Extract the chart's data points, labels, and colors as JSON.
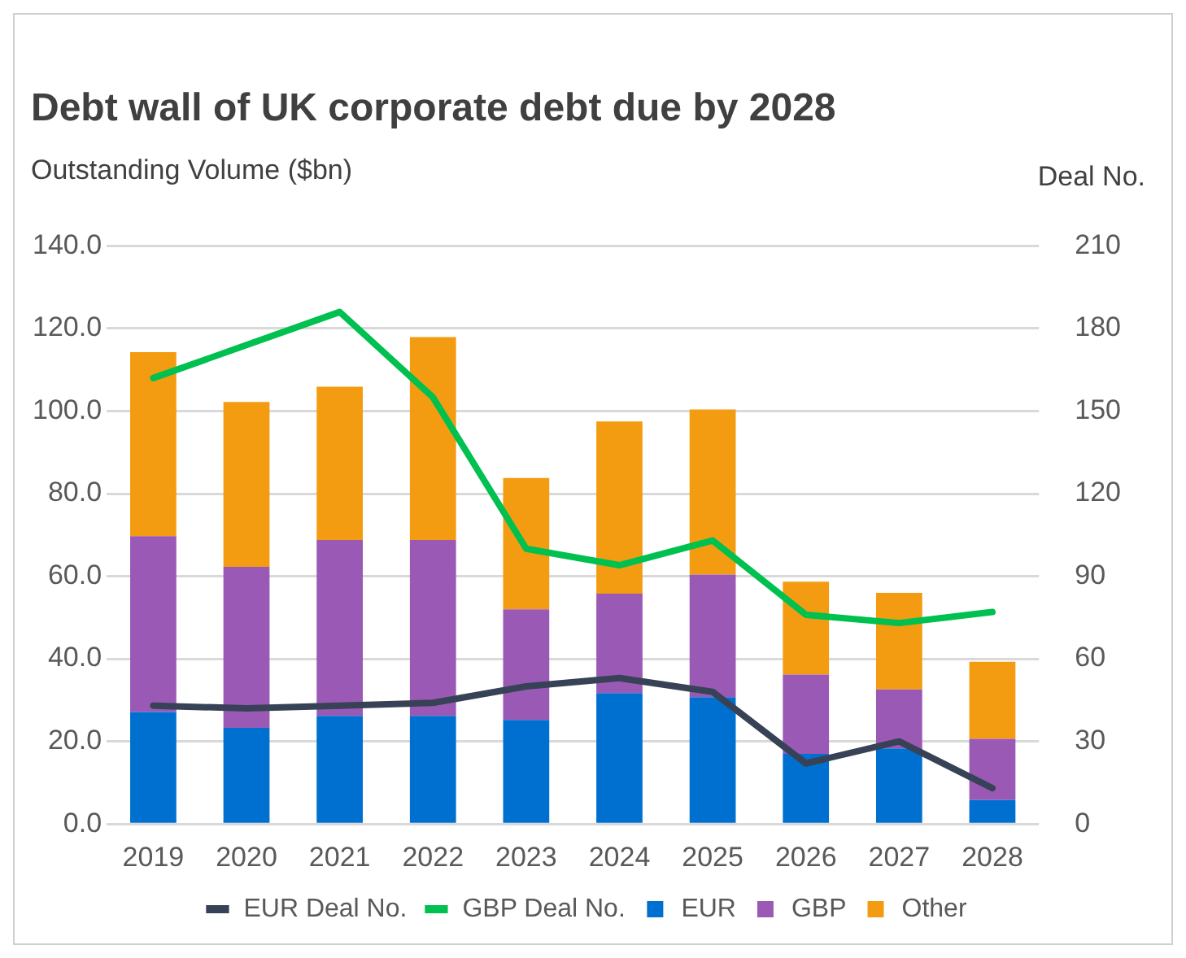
{
  "chart_data": {
    "type": "bar",
    "title": "Debt wall of UK corporate debt due by 2028",
    "ylabel": "Outstanding Volume ($bn)",
    "y2label": "Deal No.",
    "categories": [
      "2019",
      "2020",
      "2021",
      "2022",
      "2023",
      "2024",
      "2025",
      "2026",
      "2027",
      "2028"
    ],
    "stacked": true,
    "series": [
      {
        "name": "EUR",
        "color": "#0070d0",
        "values": [
          27.1,
          23.3,
          26.2,
          26.2,
          25.2,
          31.7,
          30.7,
          17.0,
          18.3,
          5.8
        ]
      },
      {
        "name": "GBP",
        "color": "#9b59b6",
        "values": [
          42.6,
          39.0,
          42.6,
          42.6,
          26.8,
          24.1,
          29.7,
          19.2,
          14.3,
          14.8
        ]
      },
      {
        "name": "Other",
        "color": "#f39c12",
        "values": [
          44.6,
          39.9,
          37.1,
          49.1,
          31.8,
          41.7,
          40.0,
          22.5,
          23.4,
          18.7
        ]
      },
      {
        "name": "EUR Deal No.",
        "type": "line",
        "axis": "y2",
        "color": "#374256",
        "values": [
          43,
          42,
          43,
          44,
          50,
          53,
          48,
          22,
          30,
          13
        ]
      },
      {
        "name": "GBP Deal No.",
        "type": "line",
        "axis": "y2",
        "color": "#00c050",
        "values": [
          162,
          174,
          186,
          155,
          100,
          94,
          103,
          76,
          73,
          77
        ]
      }
    ],
    "ylim": [
      0,
      140
    ],
    "yticks": [
      {
        "value": 0,
        "label": "0.0"
      },
      {
        "value": 20,
        "label": "20.0"
      },
      {
        "value": 40,
        "label": "40.0"
      },
      {
        "value": 60,
        "label": "60.0"
      },
      {
        "value": 80,
        "label": "80.0"
      },
      {
        "value": 100,
        "label": "100.0"
      },
      {
        "value": 120,
        "label": "120.0"
      },
      {
        "value": 140,
        "label": "140.0"
      }
    ],
    "y2lim": [
      0,
      210
    ],
    "y2ticks": [
      0,
      30,
      60,
      90,
      120,
      150,
      180,
      210
    ],
    "grid": "y",
    "legend": "bottom",
    "marker": "none",
    "line_style": "solid"
  }
}
